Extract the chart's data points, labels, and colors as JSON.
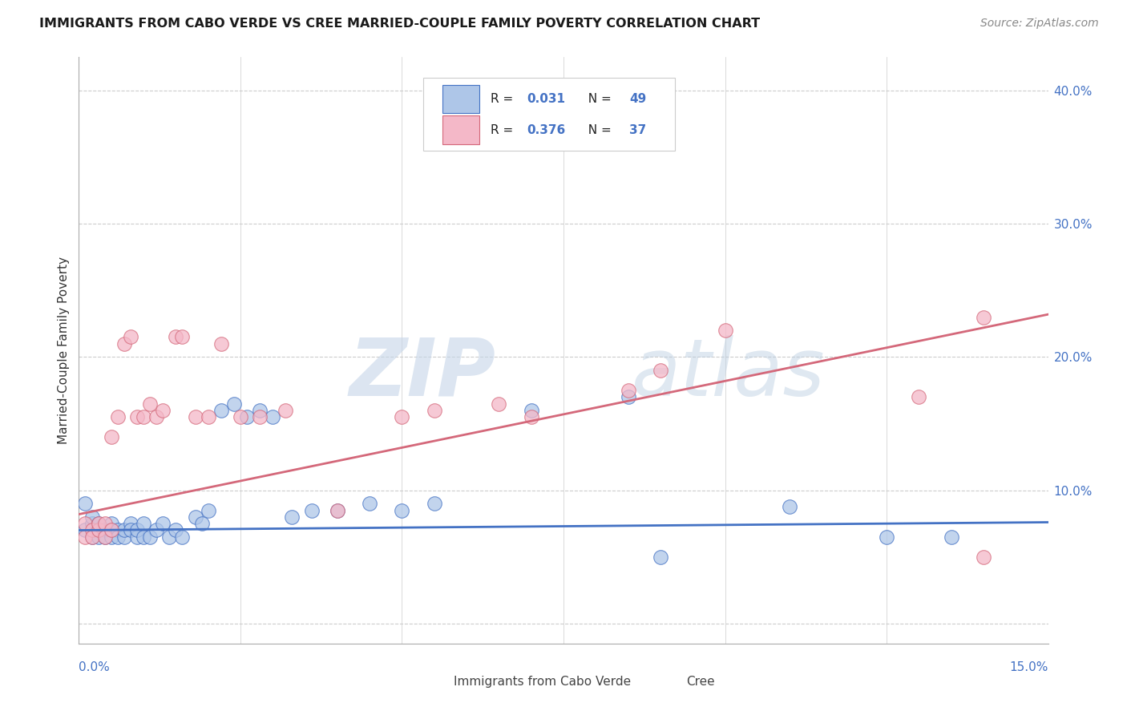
{
  "title": "IMMIGRANTS FROM CABO VERDE VS CREE MARRIED-COUPLE FAMILY POVERTY CORRELATION CHART",
  "source": "Source: ZipAtlas.com",
  "ylabel": "Married-Couple Family Poverty",
  "xlim": [
    0.0,
    0.15
  ],
  "ylim": [
    -0.015,
    0.425
  ],
  "ytick_vals": [
    0.0,
    0.1,
    0.2,
    0.3,
    0.4
  ],
  "ytick_labels_right": [
    "10.0%",
    "20.0%",
    "30.0%",
    "40.0%"
  ],
  "xtick_label_left": "0.0%",
  "xtick_label_right": "15.0%",
  "color_blue": "#aec6e8",
  "color_pink": "#f4b8c8",
  "line_color_blue": "#4472c4",
  "line_color_pink": "#d4687a",
  "text_color_blue": "#4472c4",
  "legend_label1": "Immigrants from Cabo Verde",
  "legend_label2": "Cree",
  "cabo_verde_x": [
    0.0005,
    0.001,
    0.001,
    0.0015,
    0.002,
    0.002,
    0.002,
    0.0025,
    0.003,
    0.003,
    0.003,
    0.004,
    0.004,
    0.004,
    0.005,
    0.005,
    0.005,
    0.006,
    0.006,
    0.007,
    0.007,
    0.008,
    0.008,
    0.009,
    0.009,
    0.01,
    0.01,
    0.011,
    0.012,
    0.013,
    0.014,
    0.015,
    0.016,
    0.018,
    0.019,
    0.02,
    0.022,
    0.025,
    0.027,
    0.03,
    0.033,
    0.04,
    0.045,
    0.055,
    0.07,
    0.085,
    0.09,
    0.11,
    0.135
  ],
  "cabo_verde_y": [
    0.085,
    0.06,
    0.07,
    0.09,
    0.065,
    0.075,
    0.07,
    0.08,
    0.065,
    0.07,
    0.075,
    0.07,
    0.065,
    0.075,
    0.065,
    0.07,
    0.075,
    0.07,
    0.065,
    0.065,
    0.07,
    0.075,
    0.07,
    0.065,
    0.07,
    0.075,
    0.07,
    0.065,
    0.07,
    0.075,
    0.07,
    0.065,
    0.07,
    0.08,
    0.075,
    0.085,
    0.09,
    0.16,
    0.165,
    0.16,
    0.08,
    0.08,
    0.085,
    0.09,
    0.165,
    0.17,
    0.05,
    0.088,
    0.065
  ],
  "cree_x": [
    0.0005,
    0.001,
    0.001,
    0.002,
    0.002,
    0.003,
    0.003,
    0.004,
    0.004,
    0.005,
    0.005,
    0.006,
    0.007,
    0.008,
    0.009,
    0.01,
    0.011,
    0.012,
    0.013,
    0.015,
    0.016,
    0.018,
    0.02,
    0.022,
    0.025,
    0.028,
    0.032,
    0.04,
    0.05,
    0.055,
    0.065,
    0.07,
    0.085,
    0.09,
    0.1,
    0.13,
    0.14
  ],
  "cree_y": [
    0.075,
    0.065,
    0.07,
    0.065,
    0.07,
    0.07,
    0.075,
    0.075,
    0.07,
    0.065,
    0.14,
    0.155,
    0.21,
    0.21,
    0.155,
    0.155,
    0.165,
    0.155,
    0.16,
    0.215,
    0.215,
    0.155,
    0.155,
    0.21,
    0.155,
    0.155,
    0.16,
    0.085,
    0.155,
    0.16,
    0.165,
    0.155,
    0.175,
    0.19,
    0.22,
    0.17,
    0.23
  ]
}
